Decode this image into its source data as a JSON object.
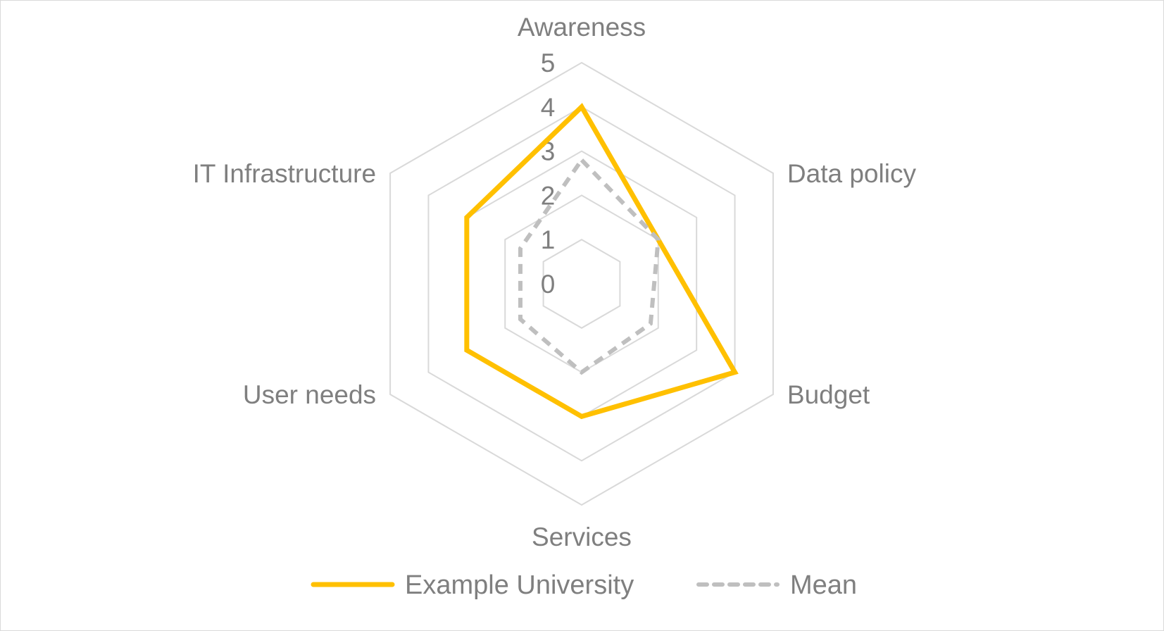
{
  "chart_data": {
    "type": "radar",
    "categories": [
      "Awareness",
      "Data policy",
      "Budget",
      "Services",
      "User needs",
      "IT Infrastructure"
    ],
    "r_ticks": [
      0,
      1,
      2,
      3,
      4,
      5
    ],
    "rlim": [
      0,
      5
    ],
    "grid": true,
    "legend_position": "bottom",
    "series": [
      {
        "name": "Example University",
        "values": [
          4,
          2,
          4,
          3,
          3,
          3
        ],
        "color": "#FFC000",
        "style": "solid"
      },
      {
        "name": "Mean",
        "values": [
          2.8,
          2,
          1.8,
          2,
          1.6,
          1.6
        ],
        "color": "#BFBFBF",
        "style": "dashed"
      }
    ]
  }
}
